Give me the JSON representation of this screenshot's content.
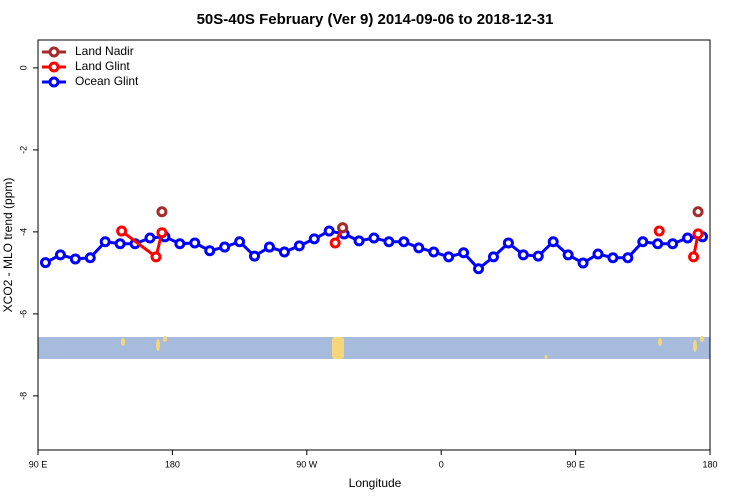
{
  "chart_data": {
    "type": "line",
    "title": "50S-40S February (Ver 9)   2014-09-06 to 2018-12-31",
    "x_label": "Longitude",
    "y_label": "XCO2 - MLO trend (ppm)",
    "xlim": [
      90,
      540
    ],
    "ylim": [
      -9.32,
      0.68
    ],
    "xticks": [
      {
        "value": 90,
        "label": "90 E"
      },
      180,
      {
        "value": 270,
        "label": "90 W"
      },
      {
        "value": 360,
        "label": "0"
      },
      {
        "value": 450,
        "label": "90 E"
      },
      {
        "value": 540,
        "label": "180"
      }
    ],
    "yticks": [
      0,
      -2,
      -4,
      -6,
      -8
    ],
    "legend": "top-left",
    "series": [
      {
        "name": "Land Nadir",
        "color": "#a52a2a",
        "x": [
          173,
          null,
          294,
          null,
          532
        ],
        "values": [
          -3.51,
          null,
          -3.9,
          null,
          -3.51
        ]
      },
      {
        "name": "Land Glint",
        "color": "#ff0000",
        "x": [
          146,
          169,
          173,
          null,
          289,
          294,
          null,
          506,
          null,
          529,
          532
        ],
        "values": [
          -3.98,
          -4.61,
          -4.02,
          null,
          -4.27,
          -3.9,
          null,
          -3.98,
          null,
          -4.61,
          -4.05
        ]
      },
      {
        "name": "Ocean Glint",
        "color": "#0000ff",
        "x": [
          95,
          105,
          115,
          125,
          135,
          145,
          155,
          165,
          175,
          185,
          195,
          205,
          215,
          225,
          235,
          245,
          255,
          265,
          275,
          285,
          295,
          305,
          315,
          325,
          335,
          345,
          355,
          365,
          375,
          385,
          395,
          405,
          415,
          425,
          435,
          445,
          455,
          465,
          475,
          485,
          495,
          505,
          515,
          525,
          535
        ],
        "values": [
          -4.75,
          -4.56,
          -4.66,
          -4.63,
          -4.24,
          -4.29,
          -4.29,
          -4.15,
          -4.12,
          -4.29,
          -4.27,
          -4.46,
          -4.37,
          -4.24,
          -4.59,
          -4.37,
          -4.49,
          -4.34,
          -4.17,
          -3.98,
          -4.05,
          -4.22,
          -4.15,
          -4.24,
          -4.24,
          -4.39,
          -4.49,
          -4.61,
          -4.51,
          -4.9,
          -4.61,
          -4.27,
          -4.56,
          -4.59,
          -4.24,
          -4.56,
          -4.76,
          -4.54,
          -4.63,
          -4.63,
          -4.24,
          -4.29,
          -4.29,
          -4.15,
          -4.12
        ]
      }
    ]
  }
}
